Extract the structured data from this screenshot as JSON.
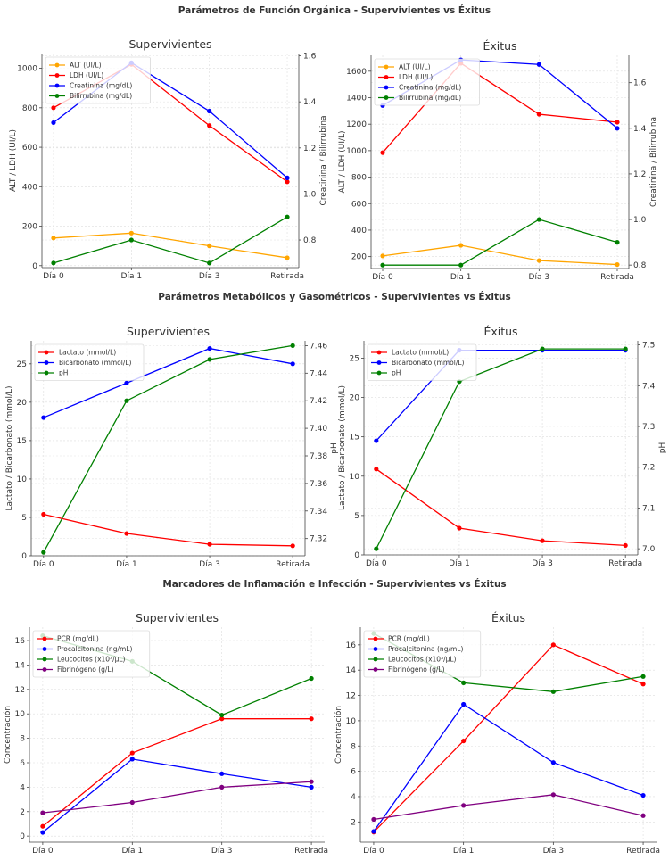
{
  "suptitles": [
    "Parámetros de Función Orgánica - Supervivientes vs Éxitus",
    "Parámetros Metabólicos y Gasométricos - Supervivientes vs Éxitus",
    "Marcadores de Inflamación e Infección - Supervivientes vs Éxitus"
  ],
  "chart_data": [
    {
      "type": "line",
      "title": "Supervivientes",
      "categories": [
        "Día 0",
        "Día 1",
        "Día 3",
        "Retirada"
      ],
      "ylabel": "ALT / LDH (UI/L)",
      "y2label": "Creatinina / Bilirrubina",
      "ylim": [
        -10,
        1075
      ],
      "yticks": [
        0,
        200,
        400,
        600,
        800,
        1000
      ],
      "y2lim": [
        0.68,
        1.61
      ],
      "y2ticks": [
        0.8,
        1.0,
        1.2,
        1.4,
        1.6
      ],
      "y2fmt": 1,
      "grid": true,
      "legend": "top-left",
      "series": [
        {
          "name": "ALT (UI/L)",
          "color": "#ffa500",
          "axis": "left",
          "values": [
            140,
            165,
            100,
            40
          ]
        },
        {
          "name": "LDH (UI/L)",
          "color": "#ff0000",
          "axis": "left",
          "values": [
            800,
            1020,
            710,
            425
          ]
        },
        {
          "name": "Creatinina (mg/dL)",
          "color": "#0000ff",
          "axis": "right",
          "values": [
            1.31,
            1.57,
            1.36,
            1.07
          ]
        },
        {
          "name": "Bilirrubina (mg/dL)",
          "color": "#008000",
          "axis": "right",
          "values": [
            0.7,
            0.8,
            0.7,
            0.9
          ]
        }
      ]
    },
    {
      "type": "line",
      "title": "Éxitus",
      "categories": [
        "Día 0",
        "Día 1",
        "Día 3",
        "Retirada"
      ],
      "ylabel": "ALT / LDH (UI/L)",
      "y2label": "Creatinina / Bilirrubina",
      "ylim": [
        110,
        1720
      ],
      "yticks": [
        200,
        400,
        600,
        800,
        1000,
        1200,
        1400,
        1600
      ],
      "y2lim": [
        0.785,
        1.72
      ],
      "y2ticks": [
        0.8,
        1.0,
        1.2,
        1.4,
        1.6
      ],
      "y2fmt": 1,
      "grid": true,
      "legend": "top-left",
      "series": [
        {
          "name": "ALT (UI/L)",
          "color": "#ffa500",
          "axis": "left",
          "values": [
            205,
            285,
            170,
            140
          ]
        },
        {
          "name": "LDH (UI/L)",
          "color": "#ff0000",
          "axis": "left",
          "values": [
            985,
            1660,
            1275,
            1215
          ]
        },
        {
          "name": "Creatinina (mg/dL)",
          "color": "#0000ff",
          "axis": "right",
          "values": [
            1.5,
            1.7,
            1.68,
            1.4
          ]
        },
        {
          "name": "Bilirrubina (mg/dL)",
          "color": "#008000",
          "axis": "right",
          "values": [
            0.8,
            0.8,
            1.0,
            0.9
          ]
        }
      ]
    },
    {
      "type": "line",
      "title": "Supervivientes",
      "categories": [
        "Día 0",
        "Día 1",
        "Día 3",
        "Retirada"
      ],
      "ylabel": "Lactato / Bicarbonato (mmol/L)",
      "y2label": "pH",
      "ylim": [
        0,
        28
      ],
      "yticks": [
        0,
        5,
        10,
        15,
        20,
        25
      ],
      "y2lim": [
        7.3075,
        7.4635
      ],
      "y2ticks": [
        7.32,
        7.34,
        7.36,
        7.38,
        7.4,
        7.42,
        7.44,
        7.46
      ],
      "y2fmt": 2,
      "grid": true,
      "legend": "top-left",
      "series": [
        {
          "name": "Lactato (mmol/L)",
          "color": "#ff0000",
          "axis": "left",
          "values": [
            5.4,
            2.9,
            1.5,
            1.3
          ]
        },
        {
          "name": "Bicarbonato (mmol/L)",
          "color": "#0000ff",
          "axis": "left",
          "values": [
            18,
            22.5,
            27,
            25
          ]
        },
        {
          "name": "pH",
          "color": "#008000",
          "axis": "right",
          "values": [
            7.31,
            7.42,
            7.45,
            7.46
          ]
        }
      ]
    },
    {
      "type": "line",
      "title": "Éxitus",
      "categories": [
        "Día 0",
        "Día 1",
        "Día 3",
        "Retirada"
      ],
      "ylabel": "Lactato / Bicarbonato (mmol/L)",
      "y2label": "pH",
      "ylim": [
        0,
        27.2
      ],
      "yticks": [
        0,
        5,
        10,
        15,
        20,
        25
      ],
      "y2lim": [
        6.985,
        7.51
      ],
      "y2ticks": [
        7.0,
        7.1,
        7.2,
        7.3,
        7.4,
        7.5
      ],
      "y2fmt": 1,
      "grid": true,
      "legend": "top-left",
      "series": [
        {
          "name": "Lactato (mmol/L)",
          "color": "#ff0000",
          "axis": "left",
          "values": [
            10.9,
            3.4,
            1.8,
            1.2
          ]
        },
        {
          "name": "Bicarbonato (mmol/L)",
          "color": "#0000ff",
          "axis": "left",
          "values": [
            14.5,
            26,
            26,
            26
          ]
        },
        {
          "name": "pH",
          "color": "#008000",
          "axis": "right",
          "values": [
            7.0,
            7.41,
            7.49,
            7.49
          ]
        }
      ]
    },
    {
      "type": "line",
      "title": "Supervivientes",
      "categories": [
        "Día 0",
        "Día 1",
        "Día 3",
        "Retirada"
      ],
      "ylabel": "Concentración",
      "ylim": [
        -0.5,
        17.1
      ],
      "yticks": [
        0,
        2,
        4,
        6,
        8,
        10,
        12,
        14,
        16
      ],
      "grid": true,
      "legend": "top-left",
      "series": [
        {
          "name": "PCR (mg/dL)",
          "color": "#ff0000",
          "axis": "left",
          "values": [
            0.8,
            6.8,
            9.6,
            9.6
          ]
        },
        {
          "name": "Procalcitonina (ng/mL)",
          "color": "#0000ff",
          "axis": "left",
          "values": [
            0.3,
            6.3,
            5.1,
            4.0
          ]
        },
        {
          "name": "Leucocitos (x10³/µL)",
          "color": "#008000",
          "axis": "left",
          "values": [
            16.4,
            14.3,
            9.9,
            12.9
          ]
        },
        {
          "name": "Fibrinógeno (g/L)",
          "color": "#800080",
          "axis": "left",
          "values": [
            1.9,
            2.75,
            4.0,
            4.45
          ]
        }
      ]
    },
    {
      "type": "line",
      "title": "Éxitus",
      "categories": [
        "Día 0",
        "Día 1",
        "Día 3",
        "Retirada"
      ],
      "ylabel": "Concentración",
      "ylim": [
        0.4,
        17.4
      ],
      "yticks": [
        2,
        4,
        6,
        8,
        10,
        12,
        14,
        16
      ],
      "grid": true,
      "legend": "top-left",
      "series": [
        {
          "name": "PCR (mg/dL)",
          "color": "#ff0000",
          "axis": "left",
          "values": [
            1.2,
            8.4,
            16.0,
            12.9
          ]
        },
        {
          "name": "Procalcitonina (ng/mL)",
          "color": "#0000ff",
          "axis": "left",
          "values": [
            1.25,
            11.3,
            6.7,
            4.1
          ]
        },
        {
          "name": "Leucocitos (x10³/µL)",
          "color": "#008000",
          "axis": "left",
          "values": [
            16.9,
            13.0,
            12.3,
            13.5
          ]
        },
        {
          "name": "Fibrinógeno (g/L)",
          "color": "#800080",
          "axis": "left",
          "values": [
            2.2,
            3.3,
            4.15,
            2.5
          ]
        }
      ]
    }
  ]
}
